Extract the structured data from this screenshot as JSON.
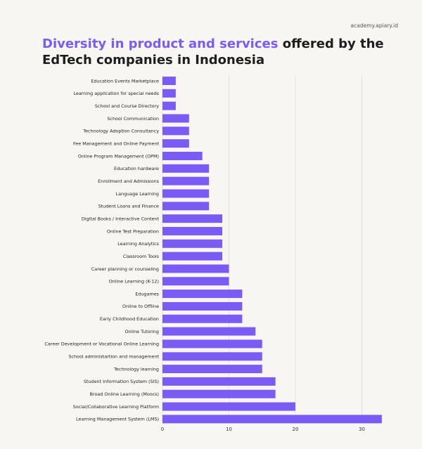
{
  "source": "academy.apiary.id",
  "title": {
    "accent": "Diversity in product and services",
    "rest": " offered by the EdTech companies in Indonesia"
  },
  "colors": {
    "bar": "#7a5cf5",
    "accent": "#7a5cf5",
    "grid": "#e2e1de"
  },
  "chart_data": {
    "type": "bar",
    "orientation": "horizontal",
    "title": "Diversity in product and services offered by the EdTech companies in Indonesia",
    "xlabel": "",
    "ylabel": "",
    "xlim": [
      0,
      33
    ],
    "xticks": [
      0,
      10,
      20,
      30
    ],
    "grid": true,
    "categories": [
      "Education Events Marketplace",
      "Learning application for special needs",
      "School and Course Directory",
      "School Communication",
      "Technology Adoption Consultancy",
      "Fee Management and Online Payment",
      "Online Program Management (OPM)",
      "Education hardware",
      "Enrollment and Admissions",
      "Language Learning",
      "Student Loans and Finance",
      "Digital Books / Interactive Content",
      "Online Test Preparation",
      "Learning Analytics",
      "Classroom Tools",
      "Career planning or counseling",
      "Online Learning (K-12)",
      "Edugames",
      "Online to Offline",
      "Early Childhood Education",
      "Online Tutoring",
      "Career Development or Vocational Online Learning",
      "School administartion and management",
      "Technology learning",
      "Student Information System (SIS)",
      "Broad Online Learning (Moocs)",
      "Social/Collaborative Learning Platform",
      "Learning Management System (LMS)"
    ],
    "values": [
      2,
      2,
      2,
      4,
      4,
      4,
      6,
      7,
      7,
      7,
      7,
      9,
      9,
      9,
      9,
      10,
      10,
      12,
      12,
      12,
      14,
      15,
      15,
      15,
      17,
      17,
      20,
      33
    ]
  }
}
